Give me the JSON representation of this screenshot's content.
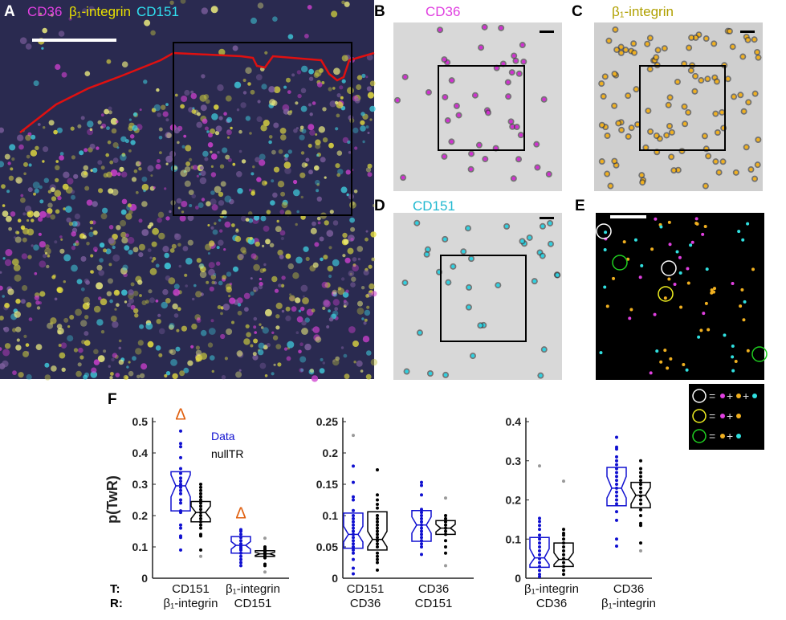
{
  "panels": {
    "A": {
      "label": "A",
      "title": [
        "CD36",
        "β₁-integrin",
        "CD151"
      ]
    },
    "B": {
      "label": "B",
      "title": "CD36"
    },
    "C": {
      "label": "C",
      "title": "β₁-integrin"
    },
    "D": {
      "label": "D",
      "title": "CD151"
    },
    "E": {
      "label": "E"
    },
    "F": {
      "label": "F"
    }
  },
  "colors": {
    "cd36": "#e040e0",
    "beta1": "#c8b400",
    "cd151": "#20c8d8",
    "data": "#1010d0",
    "null": "#000000",
    "outlier": "#999999",
    "delta": "#e06010",
    "contour": "#e01010"
  },
  "legend_E": {
    "rows": [
      {
        "circle": "#ffffff",
        "dots": [
          "#e040e0",
          "#f0b020",
          "#30e0e0"
        ]
      },
      {
        "circle": "#f0f020",
        "dots": [
          "#e040e0",
          "#f0b020"
        ]
      },
      {
        "circle": "#20d020",
        "dots": [
          "#f0b020",
          "#30e0e0"
        ]
      }
    ],
    "eq": "=",
    "plus": "+"
  },
  "chart_data": [
    {
      "type": "boxplot",
      "ylabel": "p(TwR)",
      "ylim": [
        0,
        0.5
      ],
      "yticks": [
        "0",
        "0.1",
        "0.2",
        "0.3",
        "0.4",
        "0.5"
      ],
      "legend": {
        "data": "Data",
        "null": "nullTR"
      },
      "row_labels": {
        "t": "T:",
        "r": "R:"
      },
      "groups": [
        {
          "t": "CD151",
          "r": "β₁-integrin",
          "significant": "Δ",
          "data": {
            "q1": 0.215,
            "median": 0.295,
            "q3": 0.34,
            "nlo": 0.26,
            "nhi": 0.33,
            "points": [
              0.47,
              0.43,
              0.42,
              0.385,
              0.35,
              0.335,
              0.32,
              0.31,
              0.3,
              0.29,
              0.28,
              0.27,
              0.25,
              0.24,
              0.215,
              0.21,
              0.17,
              0.16,
              0.135,
              0.13,
              0.09
            ],
            "outliers": []
          },
          "null": {
            "q1": 0.18,
            "median": 0.21,
            "q3": 0.245,
            "nlo": 0.19,
            "nhi": 0.23,
            "points": [
              0.3,
              0.29,
              0.28,
              0.27,
              0.26,
              0.25,
              0.24,
              0.23,
              0.22,
              0.21,
              0.2,
              0.19,
              0.18,
              0.17,
              0.16,
              0.14,
              0.135,
              0.09
            ],
            "outliers": [
              0.07
            ]
          }
        },
        {
          "t": "β₁-integrin",
          "r": "CD151",
          "significant": "Δ",
          "data": {
            "q1": 0.08,
            "median": 0.105,
            "q3": 0.133,
            "nlo": 0.093,
            "nhi": 0.117,
            "points": [
              0.155,
              0.15,
              0.14,
              0.13,
              0.12,
              0.11,
              0.1,
              0.095,
              0.09,
              0.08,
              0.07,
              0.06,
              0.05,
              0.04
            ],
            "outliers": []
          },
          "null": {
            "q1": 0.07,
            "median": 0.078,
            "q3": 0.088,
            "nlo": 0.073,
            "nhi": 0.083,
            "points": [
              0.1,
              0.095,
              0.09,
              0.085,
              0.08,
              0.075,
              0.07,
              0.065,
              0.045,
              0.04
            ],
            "outliers": [
              0.128,
              0.02
            ]
          }
        }
      ]
    },
    {
      "type": "boxplot",
      "ylim": [
        0,
        0.25
      ],
      "yticks": [
        "0",
        "0.05",
        "0.1",
        "0.15",
        "0.2",
        "0.25"
      ],
      "groups": [
        {
          "t": "CD151",
          "r": "CD36",
          "data": {
            "q1": 0.048,
            "median": 0.07,
            "q3": 0.104,
            "nlo": 0.058,
            "nhi": 0.083,
            "points": [
              0.179,
              0.153,
              0.13,
              0.125,
              0.108,
              0.1,
              0.095,
              0.09,
              0.085,
              0.08,
              0.075,
              0.07,
              0.065,
              0.06,
              0.055,
              0.05,
              0.045,
              0.04,
              0.03,
              0.016,
              0.007
            ],
            "outliers": [
              0.228
            ]
          },
          "null": {
            "q1": 0.045,
            "median": 0.062,
            "q3": 0.106,
            "nlo": 0.05,
            "nhi": 0.075,
            "points": [
              0.173,
              0.133,
              0.125,
              0.118,
              0.112,
              0.1,
              0.095,
              0.09,
              0.085,
              0.08,
              0.075,
              0.07,
              0.065,
              0.06,
              0.055,
              0.05,
              0.04,
              0.035,
              0.03,
              0.025,
              0.013
            ],
            "outliers": []
          }
        },
        {
          "t": "CD36",
          "r": "CD151",
          "data": {
            "q1": 0.059,
            "median": 0.085,
            "q3": 0.108,
            "nlo": 0.072,
            "nhi": 0.098,
            "points": [
              0.153,
              0.148,
              0.133,
              0.11,
              0.105,
              0.1,
              0.095,
              0.09,
              0.085,
              0.08,
              0.075,
              0.07,
              0.065,
              0.06,
              0.055,
              0.05,
              0.038
            ],
            "outliers": []
          },
          "null": {
            "q1": 0.07,
            "median": 0.08,
            "q3": 0.092,
            "nlo": 0.074,
            "nhi": 0.086,
            "points": [
              0.1,
              0.095,
              0.09,
              0.085,
              0.08,
              0.075,
              0.07,
              0.06,
              0.05,
              0.04
            ],
            "outliers": [
              0.128,
              0.02
            ]
          }
        }
      ]
    },
    {
      "type": "boxplot",
      "ylim": [
        0,
        0.4
      ],
      "yticks": [
        "0",
        "0.1",
        "0.2",
        "0.3",
        "0.4"
      ],
      "groups": [
        {
          "t": "β₁-integrin",
          "r": "CD36",
          "data": {
            "q1": 0.028,
            "median": 0.052,
            "q3": 0.104,
            "nlo": 0.035,
            "nhi": 0.075,
            "points": [
              0.153,
              0.145,
              0.135,
              0.125,
              0.11,
              0.1,
              0.09,
              0.08,
              0.07,
              0.06,
              0.05,
              0.04,
              0.03,
              0.02,
              0.01,
              0.004
            ],
            "outliers": [
              0.287
            ]
          },
          "null": {
            "q1": 0.03,
            "median": 0.048,
            "q3": 0.09,
            "nlo": 0.035,
            "nhi": 0.065,
            "points": [
              0.125,
              0.115,
              0.11,
              0.1,
              0.09,
              0.08,
              0.07,
              0.06,
              0.05,
              0.04,
              0.03,
              0.02,
              0.01
            ],
            "outliers": [
              0.248
            ]
          }
        },
        {
          "t": "CD36",
          "r": "β₁-integrin",
          "data": {
            "q1": 0.185,
            "median": 0.23,
            "q3": 0.283,
            "nlo": 0.205,
            "nhi": 0.26,
            "points": [
              0.36,
              0.335,
              0.33,
              0.31,
              0.3,
              0.29,
              0.28,
              0.27,
              0.26,
              0.25,
              0.24,
              0.23,
              0.22,
              0.21,
              0.2,
              0.19,
              0.17,
              0.148,
              0.1,
              0.082
            ],
            "outliers": []
          },
          "null": {
            "q1": 0.18,
            "median": 0.212,
            "q3": 0.245,
            "nlo": 0.19,
            "nhi": 0.232,
            "points": [
              0.3,
              0.28,
              0.27,
              0.26,
              0.25,
              0.24,
              0.23,
              0.22,
              0.21,
              0.2,
              0.19,
              0.175,
              0.16,
              0.14,
              0.135,
              0.09
            ],
            "outliers": [
              0.07
            ]
          }
        }
      ]
    }
  ]
}
